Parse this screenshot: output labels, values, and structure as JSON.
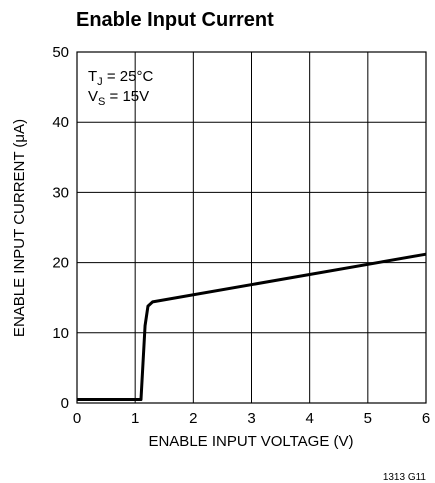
{
  "chart_data": {
    "type": "line",
    "title": "Enable Input Current",
    "xlabel": "ENABLE INPUT VOLTAGE (V)",
    "ylabel": "ENABLE INPUT CURRENT (μA)",
    "annotations": [
      {
        "base": "T",
        "sub": "J",
        "rest": " = 25°C"
      },
      {
        "base": "V",
        "sub": "S",
        "rest": " = 15V"
      }
    ],
    "footnote": "1313 G11",
    "x": [
      0,
      1.1,
      1.13,
      1.17,
      1.22,
      1.3,
      6
    ],
    "series": [
      {
        "name": "Enable Input Current",
        "color": "#000000",
        "values": [
          0.5,
          0.5,
          5,
          11,
          13.8,
          14.4,
          21.2
        ]
      }
    ],
    "xlim": [
      0,
      6
    ],
    "xticks": [
      0,
      1,
      2,
      3,
      4,
      5,
      6
    ],
    "ylim": [
      0,
      50
    ],
    "yticks": [
      0,
      10,
      20,
      30,
      40,
      50
    ],
    "grid": true
  }
}
